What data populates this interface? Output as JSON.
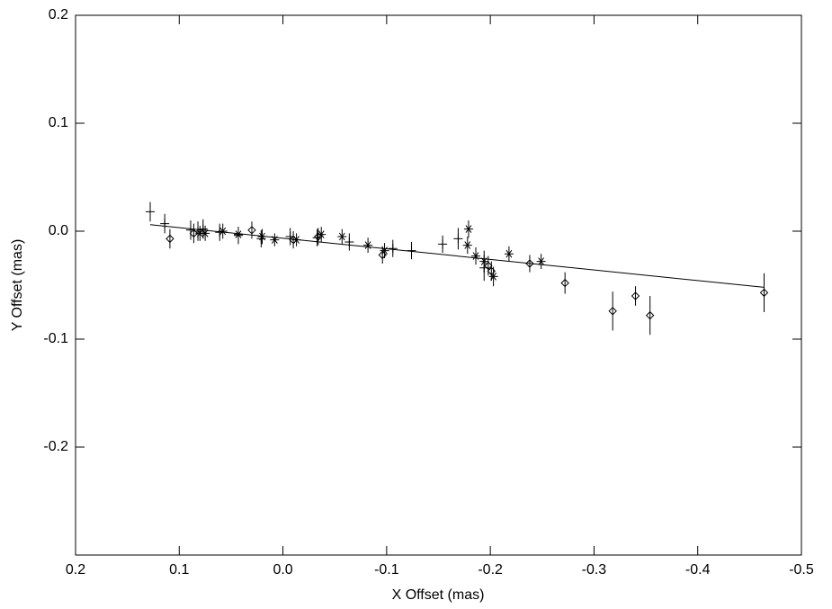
{
  "chart_data": {
    "type": "scatter",
    "xlabel": "X Offset (mas)",
    "ylabel": "Y Offset (mas)",
    "xlim": [
      0.2,
      -0.5
    ],
    "xticks": [
      0.2,
      0.1,
      {
        "value": 0,
        "label": "0.0"
      },
      -0.1,
      -0.2,
      -0.3,
      -0.4,
      -0.5
    ],
    "ylim": [
      -0.3,
      0.2
    ],
    "yticks": [
      0.2,
      0.1,
      {
        "value": 0,
        "label": "0.0"
      },
      -0.1,
      -0.2
    ],
    "series": [
      {
        "marker": "plus",
        "color": "#000000",
        "x": [
          0.128,
          0.114,
          0.089,
          0.082,
          0.077,
          0.061,
          0.043,
          0.021,
          -0.007,
          -0.033,
          -0.064,
          -0.106,
          -0.124,
          -0.154,
          -0.169,
          -0.194
        ],
        "values": [
          0.018,
          0.007,
          0.001,
          0.0,
          0.002,
          -0.001,
          -0.004,
          -0.007,
          -0.005,
          -0.006,
          -0.01,
          -0.016,
          -0.018,
          -0.012,
          -0.007,
          -0.034
        ],
        "errors": [
          0.009,
          0.009,
          0.009,
          0.009,
          0.009,
          0.008,
          0.008,
          0.008,
          0.008,
          0.008,
          0.008,
          0.008,
          0.008,
          0.008,
          0.01,
          0.012
        ]
      },
      {
        "marker": "asterisk",
        "color": "#000000",
        "x": [
          0.08,
          0.075,
          0.058,
          0.043,
          0.02,
          0.008,
          -0.013,
          -0.037,
          -0.057,
          -0.082,
          -0.098,
          -0.179,
          -0.178,
          -0.186,
          -0.194,
          -0.203,
          -0.218,
          -0.249
        ],
        "values": [
          -0.002,
          -0.002,
          0.0,
          -0.003,
          -0.005,
          -0.008,
          -0.008,
          -0.003,
          -0.005,
          -0.013,
          -0.018,
          0.002,
          -0.013,
          -0.023,
          -0.028,
          -0.042,
          -0.021,
          -0.028
        ],
        "errors": [
          0.007,
          0.007,
          0.007,
          0.007,
          0.007,
          0.006,
          0.006,
          0.007,
          0.007,
          0.007,
          0.007,
          0.008,
          0.008,
          0.008,
          0.01,
          0.009,
          0.007,
          0.007
        ]
      },
      {
        "marker": "diamond",
        "color": "#000000",
        "x": [
          0.109,
          0.086,
          0.03,
          -0.01,
          -0.034,
          -0.096,
          -0.198,
          -0.201,
          -0.238,
          -0.272,
          -0.318,
          -0.34,
          -0.354,
          -0.464
        ],
        "values": [
          -0.007,
          -0.002,
          0.001,
          -0.008,
          -0.005,
          -0.022,
          -0.032,
          -0.037,
          -0.03,
          -0.048,
          -0.074,
          -0.06,
          -0.078,
          -0.057
        ],
        "errors": [
          0.009,
          0.009,
          0.008,
          0.008,
          0.008,
          0.008,
          0.009,
          0.009,
          0.008,
          0.01,
          0.018,
          0.009,
          0.018,
          0.018
        ]
      }
    ],
    "fit": {
      "x": [
        0.128,
        -0.464
      ],
      "values": [
        0.006,
        -0.052
      ]
    }
  }
}
